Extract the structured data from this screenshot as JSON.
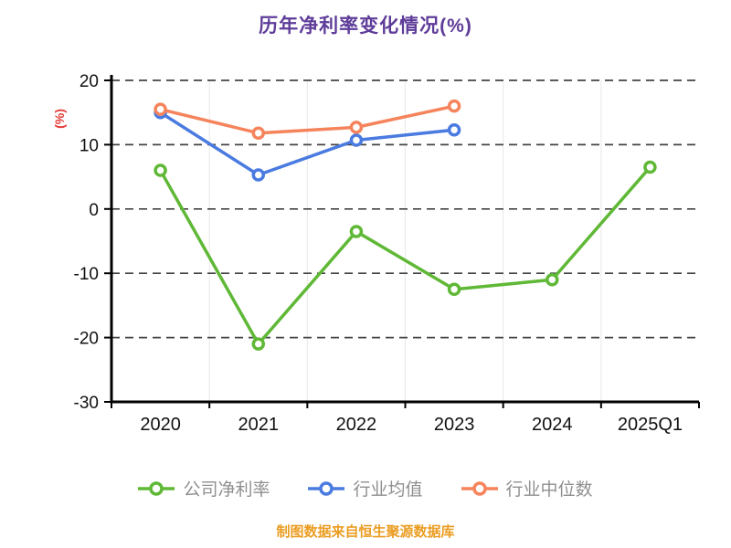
{
  "title": "历年净利率变化情况(%)",
  "y_axis_label": "(%)",
  "footer": "制图数据来自恒生聚源数据库",
  "colors": {
    "title": "#5e3c99",
    "y_axis_label": "#e53935",
    "footer": "#eb9d23",
    "axis": "#000000",
    "gridline": "#444444",
    "legend_text": "#8f8f8f"
  },
  "chart_data": {
    "type": "line",
    "title": "历年净利率变化情况(%)",
    "xlabel": "",
    "ylabel": "(%)",
    "categories": [
      "2020",
      "2021",
      "2022",
      "2023",
      "2024",
      "2025Q1"
    ],
    "series": [
      {
        "name": "公司净利率",
        "color": "#5fb836",
        "values": [
          6,
          -21,
          -3.5,
          -12.5,
          -11,
          6.5
        ]
      },
      {
        "name": "行业均值",
        "color": "#4a7be0",
        "values": [
          15,
          5.3,
          10.7,
          12.3,
          null,
          null
        ]
      },
      {
        "name": "行业中位数",
        "color": "#f5845c",
        "values": [
          15.5,
          11.8,
          12.7,
          16,
          null,
          null
        ]
      }
    ],
    "yticks": [
      20,
      10,
      0,
      -10,
      -20,
      -30
    ],
    "ylim": [
      -30,
      20
    ],
    "grid": true,
    "grid_style": "dashed-horizontal",
    "legend_position": "bottom",
    "source_note": "制图数据来自恒生聚源数据库"
  }
}
